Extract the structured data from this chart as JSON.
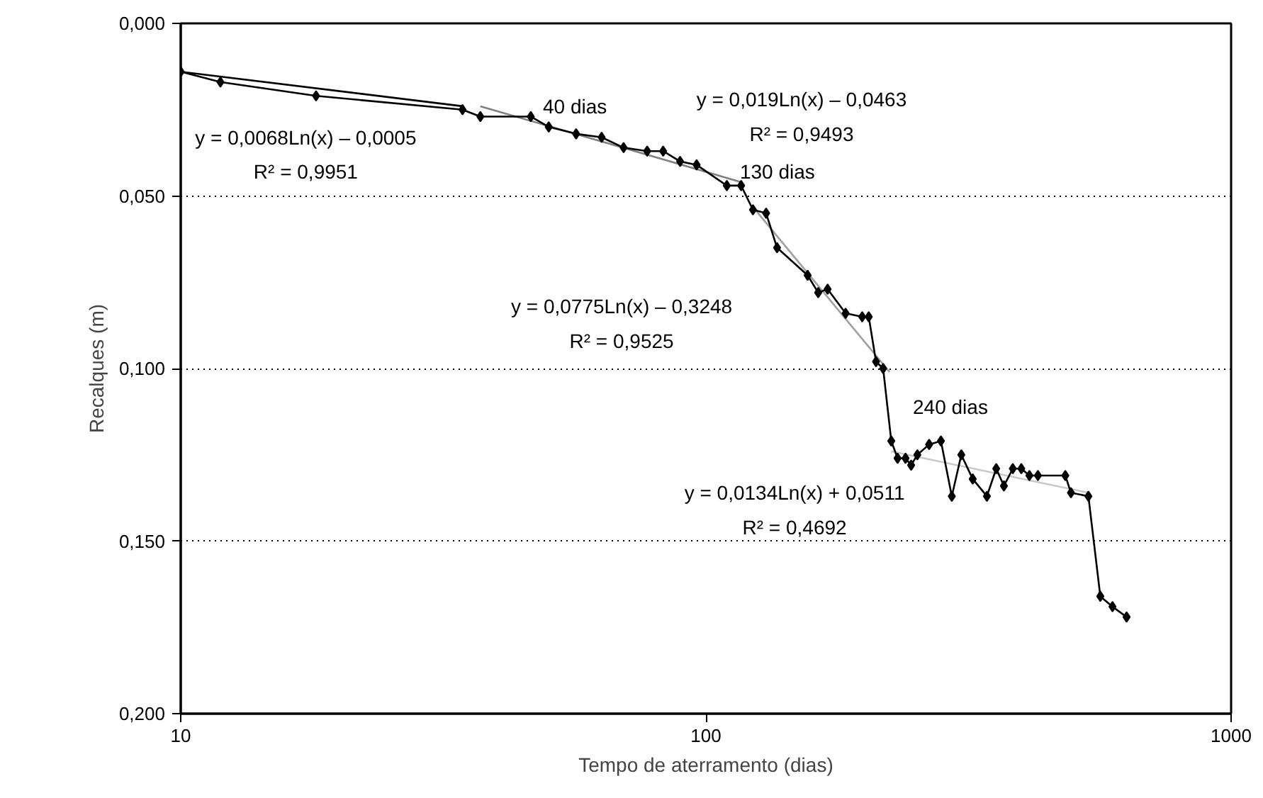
{
  "chart_data": {
    "type": "line",
    "xlabel": "Tempo de aterramento (dias)",
    "ylabel": "Recalques (m)",
    "log": "x",
    "grid": "y",
    "marker": "diamond",
    "line_style": "solid",
    "xlim": [
      10,
      1000
    ],
    "xticks": [
      10,
      100,
      1000
    ],
    "ylim": [
      0.2,
      0.0
    ],
    "yticks": [
      {
        "value": 0,
        "label": "0,000"
      },
      {
        "value": 0.05,
        "label": "0,050"
      },
      {
        "value": 0.1,
        "label": "0,100"
      },
      {
        "value": 0.15,
        "label": "0,150"
      },
      {
        "value": 0.2,
        "label": "0,200"
      }
    ],
    "series": [
      {
        "color": "#000000",
        "x": [
          10,
          11.9,
          18.1,
          34.4,
          37.2,
          46.4,
          50.2,
          56.6,
          63.3,
          69.7,
          77.3,
          82.9,
          89.3,
          96.0,
          109.6,
          116.7,
          122.9,
          130.2,
          136.6,
          156.2,
          163.6,
          170.5,
          184.5,
          198.4,
          204.2,
          210.8,
          217.5,
          225.4,
          231.7,
          239.9,
          245.9,
          252.7,
          266.1,
          280.2,
          293.9,
          306.4,
          322.1,
          342.8,
          357.1,
          369.3,
          384.0,
          398.6,
          413.0,
          428.7,
          483.4,
          495.5,
          534.9,
          563.6,
          594.5,
          632.4
        ],
        "values": [
          0.014,
          0.017,
          0.021,
          0.025,
          0.027,
          0.027,
          0.03,
          0.032,
          0.033,
          0.036,
          0.037,
          0.037,
          0.04,
          0.041,
          0.047,
          0.047,
          0.054,
          0.055,
          0.065,
          0.073,
          0.078,
          0.077,
          0.084,
          0.085,
          0.085,
          0.098,
          0.1,
          0.121,
          0.126,
          0.126,
          0.128,
          0.125,
          0.122,
          0.121,
          0.137,
          0.125,
          0.132,
          0.137,
          0.129,
          0.134,
          0.129,
          0.129,
          0.131,
          0.131,
          0.131,
          0.136,
          0.137,
          0.166,
          0.169,
          0.172
        ]
      },
      {
        "color": "#000000",
        "marker": "none",
        "x": [
          10,
          34.4
        ],
        "values": [
          0.014,
          0.024
        ]
      },
      {
        "color": "#808080",
        "marker": "none",
        "x": [
          37.2,
          116.7
        ],
        "values": [
          0.024,
          0.046
        ]
      },
      {
        "color": "#a0a0a0",
        "marker": "none",
        "x": [
          122.6,
          223.7
        ],
        "values": [
          0.053,
          0.101
        ]
      },
      {
        "color": "#c8c8c8",
        "marker": "none",
        "x": [
          225.4,
          534.9
        ],
        "values": [
          0.124,
          0.136
        ]
      }
    ],
    "annotations": [
      "y = 0,0068Ln(x) – 0,0005",
      "R² = 0,9951",
      "40 dias",
      "y = 0,019Ln(x) – 0,0463",
      "R² = 0,9493",
      "130 dias",
      "y = 0,0775Ln(x) – 0,3248",
      "R² = 0,9525",
      "240 dias",
      "y = 0,0134Ln(x) + 0,0511",
      "R² = 0,4692"
    ]
  }
}
